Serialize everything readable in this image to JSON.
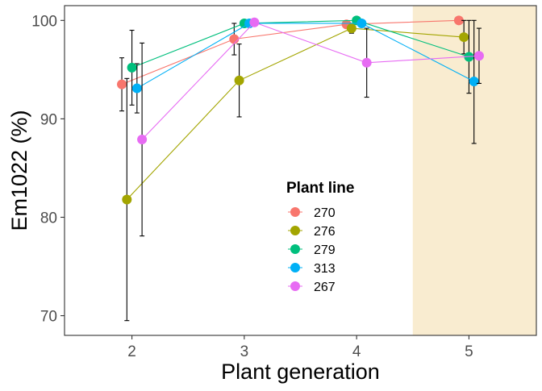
{
  "chart_data": {
    "type": "line",
    "xlabel": "Plant generation",
    "ylabel": "Em1022 (%)",
    "x": [
      2,
      3,
      4,
      5
    ],
    "xlim": [
      1.4,
      5.6
    ],
    "ylim": [
      68,
      101.5
    ],
    "yticks": [
      70,
      80,
      90,
      100
    ],
    "highlight": {
      "x_from": 4.5,
      "x_to": 5.6,
      "color": "#f9ecd0"
    },
    "grid": false,
    "legend": {
      "title": "Plant line",
      "placement": "inside-bottom-center"
    },
    "series": [
      {
        "name": "270",
        "color": "#f8766d",
        "offset": -0.09,
        "values": [
          93.5,
          98.1,
          99.6,
          100.0
        ],
        "err_low": [
          90.8,
          96.5,
          99.6,
          100.0
        ],
        "err_high": [
          96.2,
          99.7,
          99.6,
          100.0
        ]
      },
      {
        "name": "276",
        "color": "#a3a500",
        "offset": -0.045,
        "values": [
          81.8,
          93.9,
          99.2,
          98.3
        ],
        "err_low": [
          69.5,
          90.2,
          98.7,
          96.6
        ],
        "err_high": [
          94.1,
          97.6,
          99.7,
          100.0
        ]
      },
      {
        "name": "279",
        "color": "#00bf7d",
        "offset": 0.0,
        "values": [
          95.2,
          99.7,
          100.0,
          96.3
        ],
        "err_low": [
          91.4,
          99.4,
          100.0,
          92.6
        ],
        "err_high": [
          99.0,
          100.0,
          100.0,
          100.0
        ]
      },
      {
        "name": "313",
        "color": "#00b0f6",
        "offset": 0.045,
        "values": [
          93.1,
          99.7,
          99.7,
          93.8
        ],
        "err_low": [
          90.6,
          99.4,
          99.4,
          87.5
        ],
        "err_high": [
          95.6,
          100.0,
          100.0,
          100.0
        ]
      },
      {
        "name": "267",
        "color": "#e76bf3",
        "offset": 0.09,
        "values": [
          87.9,
          99.8,
          95.7,
          96.4
        ],
        "err_low": [
          78.1,
          99.8,
          92.2,
          93.6
        ],
        "err_high": [
          97.7,
          99.8,
          99.2,
          99.2
        ]
      }
    ]
  }
}
